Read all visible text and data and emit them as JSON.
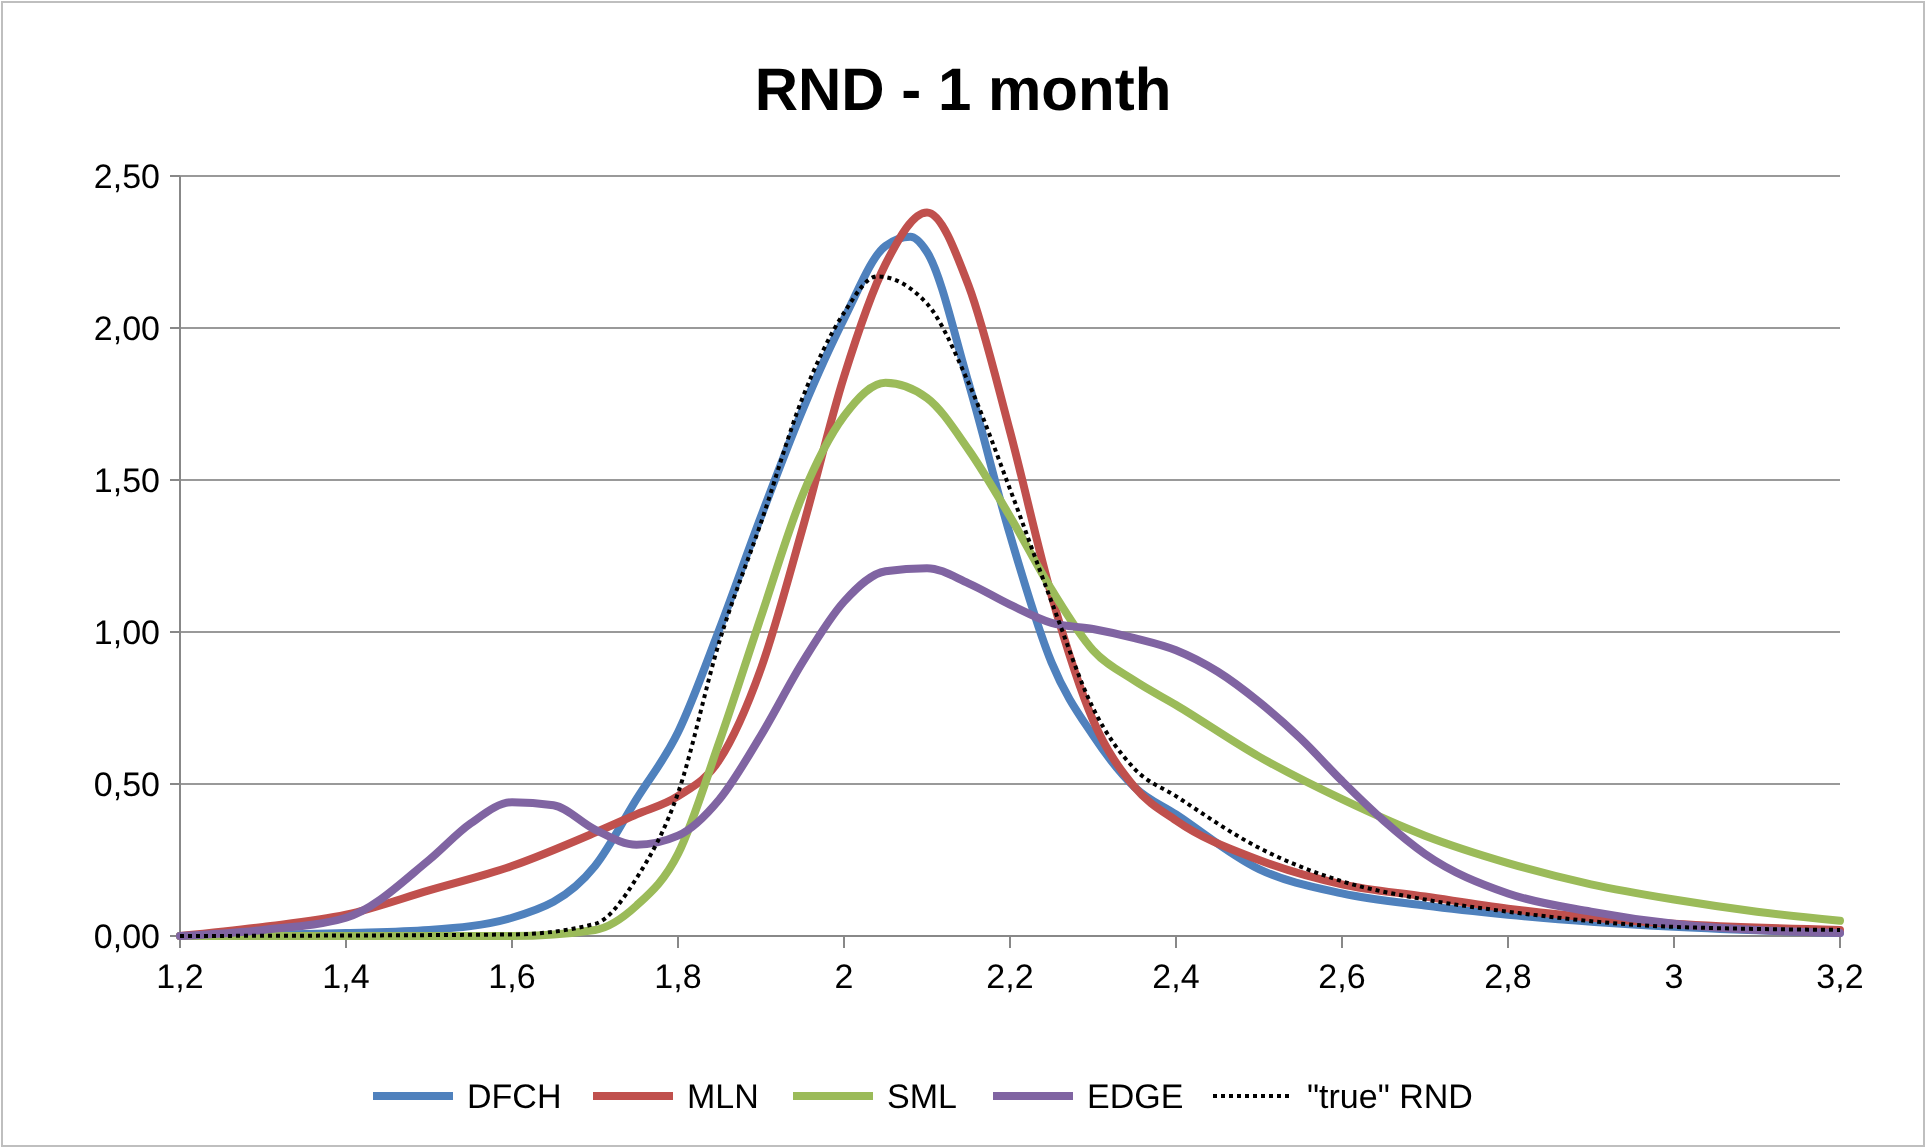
{
  "chart_data": {
    "type": "line",
    "title": "RND - 1 month",
    "xlim": [
      1.2,
      3.2
    ],
    "xticks": [
      {
        "value": 1.2,
        "label": "1,2"
      },
      {
        "value": 1.4,
        "label": "1,4"
      },
      {
        "value": 1.6,
        "label": "1,6"
      },
      {
        "value": 1.8,
        "label": "1,8"
      },
      {
        "value": 2,
        "label": "2"
      },
      {
        "value": 2.2,
        "label": "2,2"
      },
      {
        "value": 2.4,
        "label": "2,4"
      },
      {
        "value": 2.6,
        "label": "2,6"
      },
      {
        "value": 2.8,
        "label": "2,8"
      },
      {
        "value": 3,
        "label": "3"
      },
      {
        "value": 3.2,
        "label": "3,2"
      }
    ],
    "ylim": [
      0,
      2.5
    ],
    "yticks": [
      {
        "value": 0,
        "label": "0,00"
      },
      {
        "value": 0.5,
        "label": "0,50"
      },
      {
        "value": 1,
        "label": "1,00"
      },
      {
        "value": 1.5,
        "label": "1,50"
      },
      {
        "value": 2,
        "label": "2,00"
      },
      {
        "value": 2.5,
        "label": "2,50"
      }
    ],
    "grid": "y",
    "legend": "bottom",
    "marker": "none",
    "series": [
      {
        "name": "DFCH",
        "color": "#4f81bd",
        "x": [
          1.2,
          1.4,
          1.5,
          1.6,
          1.7,
          1.75,
          1.8,
          1.85,
          1.9,
          1.95,
          2,
          2.05,
          2.08,
          2.1,
          2.15,
          2.2,
          2.25,
          2.3,
          2.35,
          2.4,
          2.5,
          2.6,
          2.7,
          2.8,
          3,
          3.2
        ],
        "values": [
          0,
          0.01,
          0.02,
          0.06,
          0.23,
          0.45,
          0.67,
          1.01,
          1.38,
          1.73,
          2.03,
          2.27,
          2.3,
          2.25,
          1.82,
          1.32,
          0.9,
          0.66,
          0.49,
          0.4,
          0.22,
          0.14,
          0.1,
          0.07,
          0.03,
          0.01
        ]
      },
      {
        "name": "MLN",
        "color": "#c0504d",
        "x": [
          1.2,
          1.3,
          1.4,
          1.5,
          1.6,
          1.7,
          1.75,
          1.8,
          1.85,
          1.9,
          1.95,
          2,
          2.05,
          2.1,
          2.15,
          2.2,
          2.25,
          2.3,
          2.35,
          2.4,
          2.5,
          2.6,
          2.7,
          2.8,
          3,
          3.2
        ],
        "values": [
          0,
          0.03,
          0.07,
          0.15,
          0.23,
          0.34,
          0.4,
          0.46,
          0.58,
          0.88,
          1.34,
          1.84,
          2.21,
          2.38,
          2.14,
          1.66,
          1.12,
          0.71,
          0.49,
          0.38,
          0.25,
          0.17,
          0.13,
          0.09,
          0.04,
          0.02
        ]
      },
      {
        "name": "SML",
        "color": "#9bbb59",
        "x": [
          1.2,
          1.6,
          1.7,
          1.75,
          1.8,
          1.85,
          1.9,
          1.95,
          2,
          2.05,
          2.1,
          2.15,
          2.2,
          2.25,
          2.3,
          2.35,
          2.4,
          2.5,
          2.6,
          2.7,
          2.8,
          2.9,
          3,
          3.1,
          3.2
        ],
        "values": [
          0,
          0,
          0.02,
          0.1,
          0.27,
          0.64,
          1.05,
          1.45,
          1.71,
          1.82,
          1.77,
          1.6,
          1.38,
          1.14,
          0.94,
          0.84,
          0.76,
          0.59,
          0.45,
          0.33,
          0.24,
          0.17,
          0.12,
          0.08,
          0.05
        ]
      },
      {
        "name": "EDGE",
        "color": "#8064a2",
        "x": [
          1.2,
          1.3,
          1.4,
          1.5,
          1.55,
          1.6,
          1.65,
          1.7,
          1.75,
          1.8,
          1.85,
          1.9,
          1.95,
          2,
          2.05,
          2.1,
          2.15,
          2.2,
          2.25,
          2.3,
          2.35,
          2.4,
          2.45,
          2.5,
          2.55,
          2.6,
          2.65,
          2.7,
          2.8,
          2.9,
          3,
          3.2
        ],
        "values": [
          0,
          0.02,
          0.06,
          0.25,
          0.37,
          0.44,
          0.43,
          0.35,
          0.3,
          0.33,
          0.45,
          0.66,
          0.9,
          1.1,
          1.2,
          1.21,
          1.16,
          1.09,
          1.03,
          1.01,
          0.98,
          0.94,
          0.87,
          0.77,
          0.65,
          0.51,
          0.38,
          0.27,
          0.14,
          0.08,
          0.04,
          0.01
        ]
      },
      {
        "name": "\"true\" RND",
        "color": "#000000",
        "line_style": "dotted",
        "x": [
          1.2,
          1.6,
          1.7,
          1.75,
          1.8,
          1.85,
          1.9,
          1.95,
          2,
          2.04,
          2.1,
          2.15,
          2.2,
          2.25,
          2.3,
          2.35,
          2.4,
          2.5,
          2.6,
          2.7,
          2.8,
          3,
          3.2
        ],
        "values": [
          0,
          0.005,
          0.04,
          0.19,
          0.47,
          0.97,
          1.36,
          1.77,
          2.05,
          2.17,
          2.08,
          1.82,
          1.47,
          1.1,
          0.75,
          0.55,
          0.46,
          0.29,
          0.18,
          0.12,
          0.08,
          0.03,
          0.02
        ]
      }
    ]
  }
}
